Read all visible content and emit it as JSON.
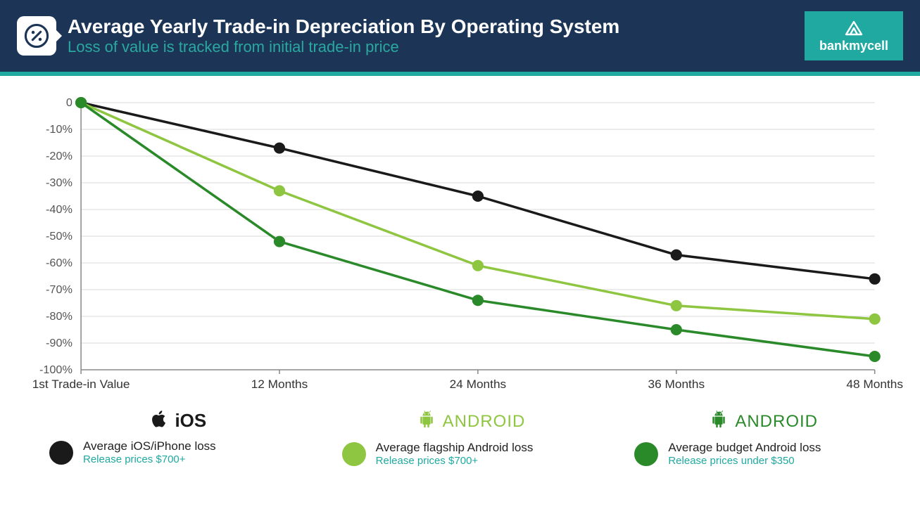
{
  "header": {
    "bg_color": "#1c3557",
    "title": "Average Yearly Trade-in Depreciation By Operating System",
    "subtitle": "Loss of value is tracked from initial trade-in price",
    "subtitle_color": "#2aa8a0",
    "icon_color": "#1c3557",
    "brand": {
      "label": "bankmycell",
      "bg_color": "#1fa9a0"
    },
    "divider_color": "#1fa9a0"
  },
  "chart": {
    "type": "line",
    "background_color": "#ffffff",
    "grid_color": "#d9d9d9",
    "axis_color": "#888888",
    "x_labels": [
      "1st Trade-in Value",
      "12 Months",
      "24 Months",
      "36 Months",
      "48 Months"
    ],
    "y_ticks": [
      0,
      -10,
      -20,
      -30,
      -40,
      -50,
      -60,
      -70,
      -80,
      -90,
      -100
    ],
    "y_tick_labels": [
      "0",
      "-10%",
      "-20%",
      "-30%",
      "-40%",
      "-50%",
      "-60%",
      "-70%",
      "-80%",
      "-90%",
      "-100%"
    ],
    "ylim": [
      -100,
      0
    ],
    "line_width": 3.5,
    "marker_radius": 8,
    "series": [
      {
        "key": "ios",
        "color": "#1a1a1a",
        "values": [
          0,
          -17,
          -35,
          -57,
          -66
        ]
      },
      {
        "key": "android_flagship",
        "color": "#8fc641",
        "values": [
          0,
          -33,
          -61,
          -76,
          -81
        ]
      },
      {
        "key": "android_budget",
        "color": "#2a8a2a",
        "values": [
          0,
          -52,
          -74,
          -85,
          -95
        ]
      }
    ],
    "tick_label_fontsize": 16,
    "xaxis_label_fontsize": 17
  },
  "legend": {
    "items": [
      {
        "os_header": "iOS",
        "os_header_color": "#1a1a1a",
        "icon": "apple",
        "dot_color": "#1a1a1a",
        "label": "Average iOS/iPhone loss",
        "sub": "Release prices $700+",
        "sub_color": "#1fa9a0"
      },
      {
        "os_header": "android",
        "os_header_color": "#8fc641",
        "icon": "android",
        "dot_color": "#8fc641",
        "label": "Average flagship Android loss",
        "sub": "Release prices $700+",
        "sub_color": "#1fa9a0"
      },
      {
        "os_header": "android",
        "os_header_color": "#2a8a2a",
        "icon": "android",
        "dot_color": "#2a8a2a",
        "label": "Average budget Android loss",
        "sub": "Release prices under $350",
        "sub_color": "#1fa9a0"
      }
    ]
  }
}
